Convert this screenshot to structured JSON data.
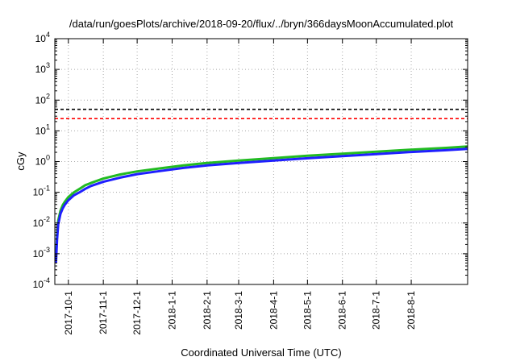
{
  "chart_data": {
    "type": "line",
    "title": "/data/run/goesPlots/archive/2018-09-20/flux/../bryn/366daysMoonAccumulated.plot",
    "xlabel": "Coordinated Universal Time (UTC)",
    "ylabel": "cGy",
    "yscale": "log",
    "ylim": [
      0.0001,
      10000
    ],
    "xlim": [
      "2017-09-19",
      "2018-09-20"
    ],
    "grid": true,
    "x_ticks": [
      "2017-10-1",
      "2017-11-1",
      "2017-12-1",
      "2018-1-1",
      "2018-2-1",
      "2018-3-1",
      "2018-4-1",
      "2018-5-1",
      "2018-6-1",
      "2018-7-1",
      "2018-8-1"
    ],
    "y_ticks": [
      {
        "value": 0.0001,
        "base": "10",
        "exp": "-4"
      },
      {
        "value": 0.001,
        "base": "10",
        "exp": "-3"
      },
      {
        "value": 0.01,
        "base": "10",
        "exp": "-2"
      },
      {
        "value": 0.1,
        "base": "10",
        "exp": "-1"
      },
      {
        "value": 1,
        "base": "10",
        "exp": "0"
      },
      {
        "value": 10,
        "base": "10",
        "exp": "1"
      },
      {
        "value": 100,
        "base": "10",
        "exp": "2"
      },
      {
        "value": 1000,
        "base": "10",
        "exp": "3"
      },
      {
        "value": 10000,
        "base": "10",
        "exp": "4"
      }
    ],
    "reference_lines": [
      {
        "value": 50,
        "color": "#000000",
        "style": "dashed"
      },
      {
        "value": 25,
        "color": "#ff0000",
        "style": "dashed"
      }
    ],
    "series": [
      {
        "color": "#22bb22",
        "x": [
          "2017-09-20",
          "2017-09-21",
          "2017-09-22",
          "2017-09-24",
          "2017-09-26",
          "2017-09-28",
          "2017-10-01",
          "2017-10-06",
          "2017-10-11",
          "2017-10-16",
          "2017-10-21",
          "2017-11-01",
          "2017-11-16",
          "2017-12-01",
          "2017-12-21",
          "2018-01-11",
          "2018-02-01",
          "2018-03-01",
          "2018-04-01",
          "2018-05-01",
          "2018-06-01",
          "2018-07-01",
          "2018-08-01",
          "2018-09-01",
          "2018-09-20"
        ],
        "values": [
          0.0008,
          0.004,
          0.012,
          0.025,
          0.038,
          0.05,
          0.07,
          0.1,
          0.13,
          0.17,
          0.2,
          0.28,
          0.38,
          0.48,
          0.6,
          0.75,
          0.9,
          1.08,
          1.3,
          1.55,
          1.8,
          2.1,
          2.45,
          2.8,
          3.1
        ]
      },
      {
        "color": "#1f1fff",
        "x": [
          "2017-09-20",
          "2017-09-21",
          "2017-09-22",
          "2017-09-24",
          "2017-09-26",
          "2017-09-28",
          "2017-10-01",
          "2017-10-06",
          "2017-10-11",
          "2017-10-16",
          "2017-10-21",
          "2017-11-01",
          "2017-11-16",
          "2017-12-01",
          "2017-12-21",
          "2018-01-11",
          "2018-02-01",
          "2018-03-01",
          "2018-04-01",
          "2018-05-01",
          "2018-06-01",
          "2018-07-01",
          "2018-08-01",
          "2018-09-01",
          "2018-09-20"
        ],
        "values": [
          0.0005,
          0.003,
          0.009,
          0.02,
          0.03,
          0.04,
          0.055,
          0.08,
          0.1,
          0.13,
          0.16,
          0.22,
          0.3,
          0.39,
          0.49,
          0.62,
          0.75,
          0.9,
          1.08,
          1.28,
          1.5,
          1.75,
          2.05,
          2.35,
          2.6
        ]
      }
    ]
  }
}
